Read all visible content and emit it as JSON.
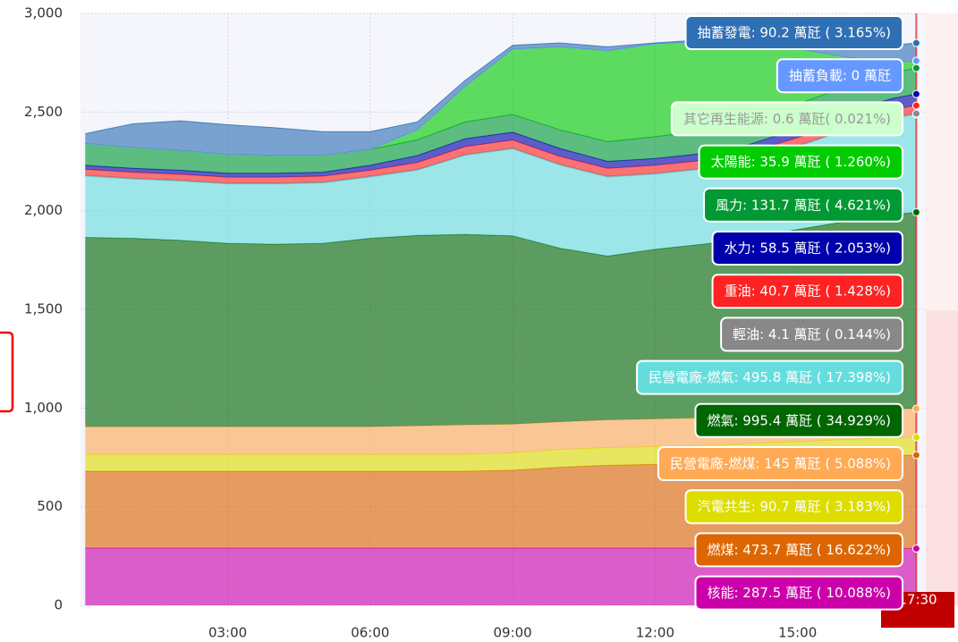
{
  "chart_data": {
    "type": "stacked-area",
    "x": [
      0,
      1,
      2,
      3,
      4,
      5,
      6,
      7,
      8,
      9,
      10,
      11,
      12,
      13,
      14,
      15,
      16,
      17,
      17.5
    ],
    "xlim": [
      -0.1,
      17.7
    ],
    "xticks": [
      {
        "value": 3,
        "label": "03:00"
      },
      {
        "value": 6,
        "label": "06:00"
      },
      {
        "value": 9,
        "label": "09:00"
      },
      {
        "value": 12,
        "label": "12:00"
      },
      {
        "value": 15,
        "label": "15:00"
      }
    ],
    "ylim": [
      0,
      3000
    ],
    "yticks": [
      0,
      500,
      {
        "value": 1000,
        "label": "1,000"
      },
      {
        "value": 1500,
        "label": "1,500"
      },
      {
        "value": 2000,
        "label": "2,000"
      },
      {
        "value": 2500,
        "label": "2,500"
      },
      {
        "value": 3000,
        "label": "3,000"
      }
    ],
    "grid": true,
    "series": [
      {
        "name": "核能",
        "color": "#cc00aa",
        "values": [
          290,
          290,
          290,
          290,
          290,
          290,
          290,
          290,
          290,
          290,
          290,
          290,
          290,
          290,
          290,
          290,
          290,
          290,
          287.5
        ]
      },
      {
        "name": "燃煤",
        "color": "#dd6600",
        "values": [
          390,
          390,
          390,
          390,
          390,
          390,
          390,
          390,
          390,
          395,
          410,
          420,
          425,
          430,
          440,
          450,
          460,
          470,
          473.7
        ]
      },
      {
        "name": "汽電共生",
        "color": "#dddd00",
        "values": [
          85,
          85,
          85,
          85,
          85,
          85,
          85,
          85,
          85,
          88,
          90,
          90,
          90,
          90,
          90,
          90,
          90,
          90,
          90.7
        ]
      },
      {
        "name": "民營電廠-燃煤",
        "color": "#ffaa55",
        "values": [
          140,
          140,
          140,
          140,
          140,
          140,
          140,
          145,
          150,
          145,
          140,
          140,
          140,
          140,
          142,
          145,
          145,
          145,
          145
        ]
      },
      {
        "name": "燃氣",
        "color": "#006600",
        "values": [
          960,
          955,
          945,
          930,
          925,
          930,
          955,
          965,
          965,
          955,
          880,
          830,
          860,
          880,
          900,
          930,
          960,
          985,
          995.4
        ]
      },
      {
        "name": "民營電廠-燃氣",
        "color": "#66dddd",
        "values": [
          310,
          300,
          300,
          300,
          305,
          305,
          310,
          330,
          400,
          440,
          420,
          400,
          380,
          380,
          390,
          420,
          460,
          490,
          495.8
        ]
      },
      {
        "name": "輕油",
        "color": "#888888",
        "values": [
          5,
          5,
          5,
          5,
          5,
          5,
          5,
          5,
          5,
          5,
          5,
          5,
          5,
          5,
          5,
          5,
          5,
          4,
          4.1
        ]
      },
      {
        "name": "重油",
        "color": "#ff2222",
        "values": [
          30,
          30,
          30,
          30,
          30,
          30,
          30,
          35,
          40,
          40,
          40,
          40,
          40,
          40,
          40,
          40,
          40,
          40,
          40.7
        ]
      },
      {
        "name": "水力",
        "color": "#0000aa",
        "values": [
          20,
          20,
          20,
          20,
          20,
          20,
          25,
          35,
          40,
          40,
          40,
          35,
          35,
          35,
          40,
          45,
          50,
          55,
          58.5
        ]
      },
      {
        "name": "風力",
        "color": "#009933",
        "values": [
          110,
          105,
          100,
          95,
          90,
          85,
          80,
          80,
          85,
          90,
          95,
          100,
          110,
          115,
          120,
          125,
          128,
          130,
          131.7
        ]
      },
      {
        "name": "太陽能",
        "color": "#00cc00",
        "values": [
          0,
          0,
          0,
          0,
          0,
          0,
          0,
          50,
          180,
          330,
          420,
          460,
          470,
          450,
          390,
          280,
          150,
          50,
          35.9
        ]
      },
      {
        "name": "其它再生能源",
        "color": "#ccffcc",
        "values": [
          0.6,
          0.6,
          0.6,
          0.6,
          0.6,
          0.6,
          0.6,
          0.6,
          0.6,
          0.6,
          0.6,
          0.6,
          0.6,
          0.6,
          0.6,
          0.6,
          0.6,
          0.6,
          0.6
        ]
      },
      {
        "name": "抽蓄負載",
        "color": "#6699ff",
        "values": [
          0,
          0,
          0,
          0,
          0,
          0,
          0,
          0,
          0,
          0,
          0,
          0,
          0,
          0,
          0,
          0,
          0,
          0,
          0
        ]
      },
      {
        "name": "抽蓄發電",
        "color": "#2f6fb4",
        "values": [
          50,
          120,
          150,
          150,
          140,
          120,
          90,
          40,
          30,
          20,
          20,
          20,
          5,
          10,
          40,
          80,
          90,
          90,
          90.2
        ]
      }
    ],
    "tooltip": {
      "label": "17:30",
      "items": [
        "抽蓄發電: 90.2 萬瓩 ( 3.165%)",
        "抽蓄負載: 0 萬瓩",
        "其它再生能源: 0.6 萬瓩( 0.021%)",
        "太陽能: 35.9 萬瓩 ( 1.260%)",
        "風力: 131.7 萬瓩 ( 4.621%)",
        "水力: 58.5 萬瓩 ( 2.053%)",
        "重油: 40.7 萬瓩 ( 1.428%)",
        "輕油: 4.1 萬瓩 ( 0.144%)",
        "民營電廠-燃氣: 495.8 萬瓩 ( 17.398%)",
        "燃氣: 995.4 萬瓩 ( 34.929%)",
        "民營電廠-燃煤: 145 萬瓩 ( 5.088%)",
        "汽電共生: 90.7 萬瓩 ( 3.183%)",
        "燃煤: 473.7 萬瓩 ( 16.622%)",
        "核能: 287.5 萬瓩 ( 10.088%)"
      ]
    }
  }
}
